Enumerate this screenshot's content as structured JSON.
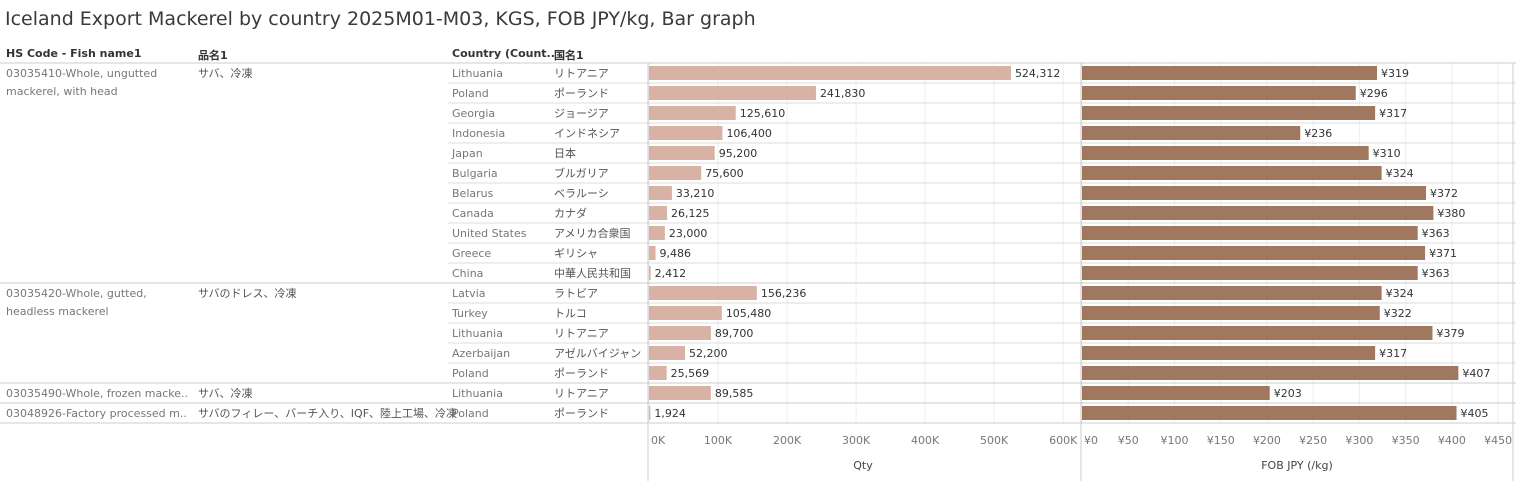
{
  "title": "Iceland Export Mackerel by country 2025M01-M03, KGS, FOB JPY/kg, Bar graph",
  "headers": {
    "hs_code": "HS Code - Fish name1",
    "hinmei": "品名1",
    "country": "Country (Count..",
    "kokumei": "国名1"
  },
  "groups": [
    {
      "hs": "03035410-Whole, ungutted mackerel, with head",
      "hs_lines": [
        "03035410-Whole, ungutted",
        "mackerel, with head"
      ],
      "name": "サバ、冷凍",
      "count": 11
    },
    {
      "hs": "03035420-Whole, gutted, headless mackerel",
      "hs_lines": [
        "03035420-Whole, gutted,",
        "headless mackerel"
      ],
      "name": "サバのドレス、冷凍",
      "count": 5
    },
    {
      "hs": "03035490-Whole, frozen macke..",
      "hs_lines": [
        "03035490-Whole, frozen macke.."
      ],
      "name": "サバ、冷凍",
      "count": 1
    },
    {
      "hs": "03048926-Factory processed m..",
      "hs_lines": [
        "03048926-Factory processed m.."
      ],
      "name": "サバのフィレー、バーチ入り、IQF、陸上工場、冷凍",
      "count": 1
    }
  ],
  "chart_data": {
    "type": "bar",
    "orientation": "horizontal",
    "rows": [
      {
        "country": "Lithuania",
        "country_jp": "リトアニア",
        "qty": 524312,
        "qty_label": "524,312",
        "fob": 319,
        "fob_label": "¥319"
      },
      {
        "country": "Poland",
        "country_jp": "ポーランド",
        "qty": 241830,
        "qty_label": "241,830",
        "fob": 296,
        "fob_label": "¥296"
      },
      {
        "country": "Georgia",
        "country_jp": "ジョージア",
        "qty": 125610,
        "qty_label": "125,610",
        "fob": 317,
        "fob_label": "¥317"
      },
      {
        "country": "Indonesia",
        "country_jp": "インドネシア",
        "qty": 106400,
        "qty_label": "106,400",
        "fob": 236,
        "fob_label": "¥236"
      },
      {
        "country": "Japan",
        "country_jp": "日本",
        "qty": 95200,
        "qty_label": "95,200",
        "fob": 310,
        "fob_label": "¥310"
      },
      {
        "country": "Bulgaria",
        "country_jp": "ブルガリア",
        "qty": 75600,
        "qty_label": "75,600",
        "fob": 324,
        "fob_label": "¥324"
      },
      {
        "country": "Belarus",
        "country_jp": "ベラルーシ",
        "qty": 33210,
        "qty_label": "33,210",
        "fob": 372,
        "fob_label": "¥372"
      },
      {
        "country": "Canada",
        "country_jp": "カナダ",
        "qty": 26125,
        "qty_label": "26,125",
        "fob": 380,
        "fob_label": "¥380"
      },
      {
        "country": "United States",
        "country_jp": "アメリカ合衆国",
        "qty": 23000,
        "qty_label": "23,000",
        "fob": 363,
        "fob_label": "¥363"
      },
      {
        "country": "Greece",
        "country_jp": "ギリシャ",
        "qty": 9486,
        "qty_label": "9,486",
        "fob": 371,
        "fob_label": "¥371"
      },
      {
        "country": "China",
        "country_jp": "中華人民共和国",
        "qty": 2412,
        "qty_label": "2,412",
        "fob": 363,
        "fob_label": "¥363"
      },
      {
        "country": "Latvia",
        "country_jp": "ラトビア",
        "qty": 156236,
        "qty_label": "156,236",
        "fob": 324,
        "fob_label": "¥324"
      },
      {
        "country": "Turkey",
        "country_jp": "トルコ",
        "qty": 105480,
        "qty_label": "105,480",
        "fob": 322,
        "fob_label": "¥322"
      },
      {
        "country": "Lithuania",
        "country_jp": "リトアニア",
        "qty": 89700,
        "qty_label": "89,700",
        "fob": 379,
        "fob_label": "¥379"
      },
      {
        "country": "Azerbaijan",
        "country_jp": "アゼルバイジャン",
        "qty": 52200,
        "qty_label": "52,200",
        "fob": 317,
        "fob_label": "¥317"
      },
      {
        "country": "Poland",
        "country_jp": "ポーランド",
        "qty": 25569,
        "qty_label": "25,569",
        "fob": 407,
        "fob_label": "¥407"
      },
      {
        "country": "Lithuania",
        "country_jp": "リトアニア",
        "qty": 89585,
        "qty_label": "89,585",
        "fob": 203,
        "fob_label": "¥203"
      },
      {
        "country": "Poland",
        "country_jp": "ポーランド",
        "qty": 1924,
        "qty_label": "1,924",
        "fob": 405,
        "fob_label": "¥405"
      }
    ],
    "qty_axis": {
      "title": "Qty",
      "min": 0,
      "max": 620000,
      "ticks": [
        0,
        100000,
        200000,
        300000,
        400000,
        500000,
        600000
      ],
      "tick_labels": [
        "0K",
        "100K",
        "200K",
        "300K",
        "400K",
        "500K",
        "600K"
      ]
    },
    "fob_axis": {
      "title": "FOB JPY (/kg)",
      "min": 0,
      "max": 465,
      "ticks": [
        0,
        50,
        100,
        150,
        200,
        250,
        300,
        350,
        400,
        450
      ],
      "tick_labels": [
        "¥0",
        "¥50",
        "¥100",
        "¥150",
        "¥200",
        "¥250",
        "¥300",
        "¥350",
        "¥400",
        "¥450"
      ]
    },
    "colors": {
      "qty": "#d7b2a5",
      "fob": "#a07860"
    }
  }
}
